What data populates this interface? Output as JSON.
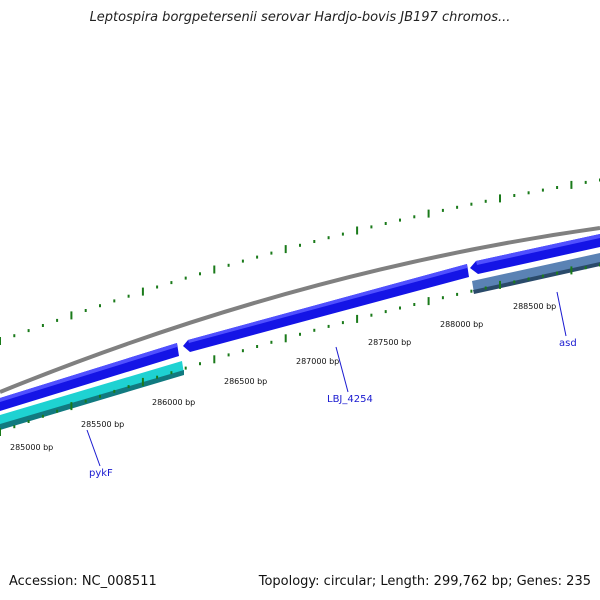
{
  "title": "Leptospira borgpetersenii serovar Hardjo-bovis JB197 chromos...",
  "footer": {
    "accession": "Accession: NC_008511",
    "summary": "Topology: circular; Length: 299,762 bp; Genes: 235"
  },
  "ruler_labels": [
    "285000 bp",
    "285500 bp",
    "286000 bp",
    "286500 bp",
    "287000 bp",
    "287500 bp",
    "288000 bp",
    "288500 bp"
  ],
  "genes": [
    "pykF",
    "LBJ_4254",
    "asd"
  ],
  "colors": {
    "backbone": "#808080",
    "gene_forward": "#1414e6",
    "gene_reverse_teal": "#1ed2d2",
    "gene_reverse_steel": "#5a82b4",
    "ticks": "#1a7a1a",
    "gene_label": "#1a1ad0"
  }
}
